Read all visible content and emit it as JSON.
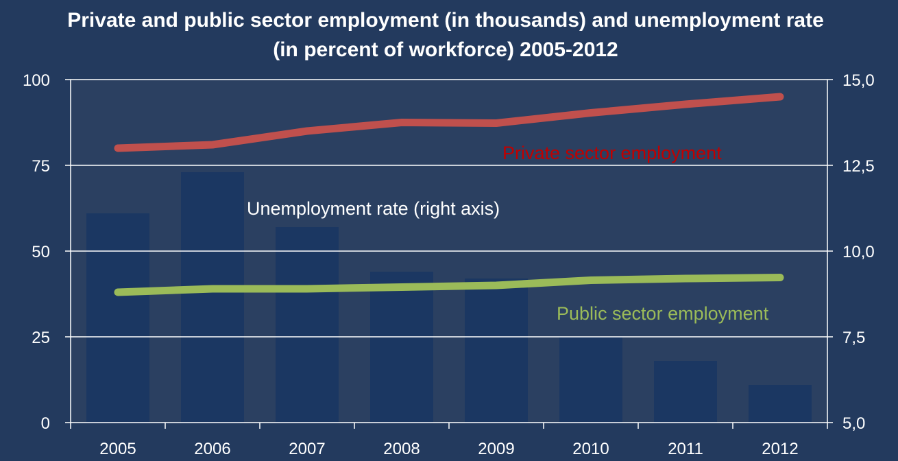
{
  "chart_data": {
    "type": "bar",
    "title": "Private and public sector employment (in thousands) and unemployment rate (in percent of workforce) 2005-2012",
    "categories": [
      "2005",
      "2006",
      "2007",
      "2008",
      "2009",
      "2010",
      "2011",
      "2012"
    ],
    "y_left": {
      "range": [
        0,
        100
      ],
      "ticks": [
        "0",
        "25",
        "50",
        "75",
        "100"
      ]
    },
    "y_right": {
      "range": [
        5.0,
        15.0
      ],
      "ticks": [
        "5,0",
        "7,5",
        "10,0",
        "12,5",
        "15,0"
      ]
    },
    "grid": true,
    "series": [
      {
        "name": "Unemployment rate (right axis)",
        "type": "bar",
        "axis": "right",
        "color": "#1b3762",
        "values": [
          11.1,
          12.3,
          10.7,
          9.4,
          9.2,
          7.5,
          6.8,
          6.1
        ]
      },
      {
        "name": "Private sector employment",
        "type": "line",
        "axis": "left",
        "color": "#c0504d",
        "label_color": "#c00000",
        "values": [
          80,
          81,
          85,
          87.5,
          87.3,
          90.3,
          92.8,
          95
        ]
      },
      {
        "name": "Public sector employment",
        "type": "line",
        "axis": "left",
        "color": "#9bbb59",
        "label_color": "#9bbb59",
        "values": [
          38,
          39,
          39,
          39.5,
          40,
          41.5,
          42,
          42.3
        ]
      }
    ]
  },
  "colors": {
    "background": "#233a5e",
    "plot_background": "#2b4061",
    "axis": "#ffffff",
    "text": "#ffffff"
  }
}
